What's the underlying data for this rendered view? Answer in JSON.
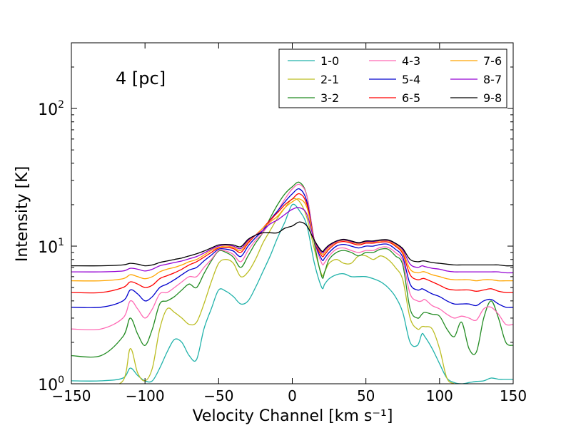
{
  "chart_data": {
    "type": "line",
    "title": "",
    "annotation": "4 [pc]",
    "xlabel": "Velocity Channel [km s⁻¹]",
    "ylabel": "Intensity [K]",
    "xlim": [
      -150,
      150
    ],
    "ylim": [
      1,
      300
    ],
    "yscale": "log",
    "x_ticks": [
      -150,
      -100,
      -50,
      0,
      50,
      100,
      150
    ],
    "x_tick_labels": [
      "−150",
      "−100",
      "−50",
      "0",
      "50",
      "100",
      "150"
    ],
    "y_ticks": [
      1,
      10,
      100
    ],
    "y_tick_labels": [
      "10",
      "10",
      "10"
    ],
    "y_tick_exponents": [
      "0",
      "1",
      "2"
    ],
    "legend_position": "top-right",
    "legend_columns": 3,
    "x": [
      -150,
      -130,
      -115,
      -110,
      -105,
      -100,
      -95,
      -90,
      -85,
      -80,
      -75,
      -70,
      -65,
      -60,
      -55,
      -50,
      -45,
      -40,
      -35,
      -30,
      -25,
      -20,
      -15,
      -10,
      -5,
      0,
      5,
      10,
      15,
      20,
      22,
      25,
      30,
      35,
      40,
      45,
      50,
      55,
      60,
      65,
      70,
      75,
      80,
      85,
      88,
      90,
      95,
      100,
      105,
      110,
      115,
      120,
      125,
      130,
      135,
      140,
      145,
      150
    ],
    "series": [
      {
        "name": "1-0",
        "color": "#20b2aa",
        "values": [
          1.05,
          1.05,
          1.1,
          1.3,
          1.15,
          1.05,
          1.05,
          1.3,
          1.7,
          2.1,
          2.0,
          1.6,
          1.5,
          2.5,
          3.5,
          4.8,
          4.7,
          4.3,
          3.8,
          4.0,
          5.0,
          6.5,
          8.5,
          11.5,
          15,
          20,
          18,
          14,
          7.5,
          5.0,
          5.3,
          5.8,
          6.2,
          6.3,
          6.0,
          6.0,
          6.0,
          5.8,
          5.5,
          5.0,
          4.3,
          3.3,
          2.0,
          1.9,
          2.3,
          2.2,
          1.8,
          1.4,
          1.1,
          1.02,
          1.0,
          1.02,
          1.04,
          1.05,
          1.1,
          1.08,
          1.08,
          1.08
        ]
      },
      {
        "name": "2-1",
        "color": "#bcbd22",
        "values": [
          0.95,
          0.95,
          1.05,
          1.8,
          1.2,
          1.05,
          1.3,
          2.5,
          3.5,
          3.3,
          3.0,
          2.7,
          2.8,
          3.8,
          5.5,
          7.5,
          8.0,
          7.5,
          6.0,
          6.5,
          8.0,
          10.5,
          13,
          16,
          19,
          22,
          21,
          16,
          9.5,
          6.2,
          6.5,
          7.5,
          8.0,
          7.5,
          7.5,
          8.5,
          8.5,
          8.0,
          8.5,
          8.0,
          7.0,
          5.7,
          3.0,
          2.5,
          2.6,
          2.6,
          2.5,
          1.8,
          1.1,
          1.0,
          0.95,
          0.95,
          0.95,
          0.95,
          0.95,
          0.95,
          0.95,
          0.95
        ]
      },
      {
        "name": "3-2",
        "color": "#228b22",
        "values": [
          1.6,
          1.6,
          2.2,
          3.0,
          2.3,
          1.9,
          2.5,
          3.8,
          4.0,
          4.3,
          4.8,
          5.3,
          5.0,
          6.3,
          7.8,
          9.2,
          9.0,
          8.3,
          7.0,
          8.5,
          10.5,
          12.5,
          16,
          20,
          24,
          27,
          29,
          23,
          10.5,
          6.0,
          6.5,
          8.0,
          9.0,
          9.3,
          9.0,
          8.5,
          9.0,
          9.0,
          9.5,
          9.5,
          8.5,
          7.3,
          3.5,
          3.0,
          3.2,
          3.3,
          3.2,
          3.1,
          2.5,
          2.2,
          2.8,
          1.8,
          1.7,
          3.0,
          4.0,
          3.0,
          2.0,
          1.9
        ]
      },
      {
        "name": "4-3",
        "color": "#ff69b4",
        "values": [
          2.5,
          2.5,
          3.0,
          4.0,
          3.5,
          3.0,
          3.5,
          4.5,
          4.6,
          5.0,
          5.5,
          6.0,
          6.0,
          7.0,
          8.0,
          9.3,
          9.2,
          8.7,
          7.7,
          9.3,
          11,
          12.5,
          15,
          18,
          22,
          26,
          28,
          23,
          11,
          7.5,
          7.6,
          8.5,
          9.5,
          9.7,
          9.3,
          9.0,
          9.3,
          9.3,
          9.8,
          9.8,
          9.0,
          7.8,
          4.5,
          4.0,
          4.0,
          4.1,
          3.7,
          3.5,
          3.2,
          3.0,
          3.1,
          3.0,
          2.9,
          3.5,
          3.6,
          3.2,
          2.7,
          2.7
        ]
      },
      {
        "name": "5-4",
        "color": "#0000cd",
        "values": [
          3.6,
          3.6,
          4.0,
          4.8,
          4.5,
          4.0,
          4.3,
          5.0,
          5.3,
          5.7,
          6.2,
          6.7,
          7.0,
          7.8,
          8.6,
          9.5,
          9.5,
          9.2,
          8.4,
          10,
          11.5,
          13,
          15.5,
          18,
          21,
          24,
          26,
          21,
          11,
          8.0,
          8.2,
          9.0,
          10,
          10.3,
          10,
          9.7,
          10,
          10,
          10.3,
          10.3,
          9.5,
          8.3,
          5.3,
          4.8,
          4.9,
          4.8,
          4.5,
          4.3,
          4.0,
          3.8,
          3.8,
          3.8,
          3.7,
          4.0,
          4.1,
          3.8,
          3.6,
          3.6
        ]
      },
      {
        "name": "6-5",
        "color": "#ff0000",
        "values": [
          4.6,
          4.6,
          5.0,
          5.5,
          5.3,
          5.0,
          5.2,
          5.8,
          6.1,
          6.4,
          6.8,
          7.3,
          7.7,
          8.3,
          9.0,
          9.7,
          9.8,
          9.6,
          9.0,
          10.5,
          12,
          13.5,
          15.5,
          17.5,
          20,
          22,
          24,
          20,
          11,
          8.5,
          8.7,
          9.5,
          10.5,
          10.8,
          10.5,
          10.2,
          10.5,
          10.5,
          10.7,
          10.7,
          10,
          8.8,
          6.2,
          5.7,
          5.8,
          5.8,
          5.5,
          5.2,
          4.9,
          4.8,
          4.8,
          4.8,
          4.7,
          4.8,
          4.9,
          4.7,
          4.6,
          4.6
        ]
      },
      {
        "name": "7-6",
        "color": "#ffa500",
        "values": [
          5.6,
          5.6,
          5.8,
          6.2,
          6.0,
          5.8,
          6.0,
          6.5,
          6.8,
          7.0,
          7.3,
          7.7,
          8.0,
          8.6,
          9.3,
          9.8,
          10,
          9.8,
          9.3,
          10.8,
          12,
          13.5,
          15,
          16.5,
          19,
          21,
          22,
          19,
          11,
          8.8,
          9.0,
          9.8,
          10.7,
          11,
          10.7,
          10.4,
          10.7,
          10.7,
          10.9,
          10.9,
          10.2,
          9.1,
          6.8,
          6.4,
          6.5,
          6.5,
          6.2,
          6.0,
          5.8,
          5.7,
          5.7,
          5.7,
          5.6,
          5.7,
          5.7,
          5.6,
          5.6,
          5.6
        ]
      },
      {
        "name": "8-7",
        "color": "#9400d3",
        "values": [
          6.5,
          6.5,
          6.6,
          6.9,
          6.8,
          6.6,
          6.8,
          7.2,
          7.4,
          7.6,
          7.8,
          8.1,
          8.4,
          8.9,
          9.5,
          10,
          10.2,
          10,
          9.6,
          11,
          12,
          13,
          14.5,
          15.5,
          17,
          18.5,
          19,
          17,
          11,
          9.0,
          9.3,
          10,
          10.8,
          11.1,
          10.8,
          10.5,
          10.8,
          10.8,
          11,
          11,
          10.4,
          9.4,
          7.4,
          7.0,
          7.2,
          7.1,
          6.9,
          6.8,
          6.6,
          6.5,
          6.5,
          6.5,
          6.5,
          6.5,
          6.5,
          6.5,
          6.4,
          6.4
        ]
      },
      {
        "name": "9-8",
        "color": "#000000",
        "values": [
          7.2,
          7.2,
          7.3,
          7.5,
          7.4,
          7.2,
          7.3,
          7.6,
          7.8,
          8.0,
          8.2,
          8.5,
          8.8,
          9.2,
          9.7,
          10.2,
          10.3,
          10.2,
          9.9,
          11.2,
          12,
          12.5,
          12.5,
          12.5,
          13.5,
          14,
          15,
          14,
          11,
          9.2,
          9.5,
          10.2,
          10.9,
          11.2,
          10.9,
          10.6,
          10.9,
          10.9,
          11.1,
          11.1,
          10.5,
          9.6,
          8.0,
          7.7,
          7.8,
          7.8,
          7.6,
          7.5,
          7.4,
          7.3,
          7.3,
          7.3,
          7.3,
          7.3,
          7.3,
          7.3,
          7.2,
          7.2
        ]
      }
    ]
  }
}
